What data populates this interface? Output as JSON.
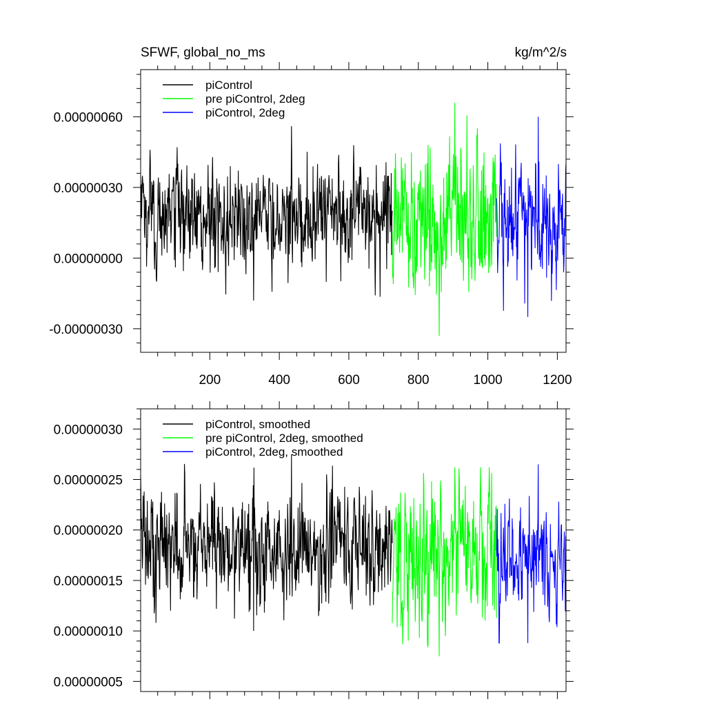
{
  "figure": {
    "left_title": "SFWF, global_no_ms",
    "right_title": "kg/m^2/s"
  },
  "colors": {
    "piControl": "#000000",
    "pre_piControl_2deg": "#00ff00",
    "piControl_2deg": "#0000ff"
  },
  "chart_data": [
    {
      "type": "line",
      "title": "SFWF, global_no_ms",
      "units": "kg/m^2/s",
      "xlim": [
        1,
        1225
      ],
      "ylim": [
        -4e-07,
        8e-07
      ],
      "x_ticks": [
        200,
        400,
        600,
        800,
        1000,
        1200
      ],
      "x_tick_labels": [
        "200",
        "400",
        "600",
        "800",
        "1000",
        "1200"
      ],
      "y_ticks": [
        -3e-07,
        0.0,
        3e-07,
        6e-07
      ],
      "y_tick_labels": [
        "-0.00000030",
        "0.00000000",
        "0.00000030",
        "0.00000060"
      ],
      "legend": "top-left",
      "series": [
        {
          "name": "piControl",
          "color": "#000000",
          "x_range": [
            1,
            725
          ],
          "mean": 1.8e-07,
          "spread": 1.1e-07,
          "peak_max": 5.6e-07,
          "peak_min": -1.8e-07
        },
        {
          "name": "pre piControl, 2deg",
          "color": "#00ff00",
          "x_range": [
            725,
            1025
          ],
          "mean": 1.6e-07,
          "spread": 1.5e-07,
          "peak_max": 6.6e-07,
          "peak_min": -3.3e-07
        },
        {
          "name": "piControl, 2deg",
          "color": "#0000ff",
          "x_range": [
            1025,
            1225
          ],
          "mean": 1.5e-07,
          "spread": 1.3e-07,
          "peak_max": 6e-07,
          "peak_min": -2.5e-07
        }
      ]
    },
    {
      "type": "line",
      "xlim": [
        1,
        1225
      ],
      "ylim": [
        4e-08,
        3.2e-07
      ],
      "x_ticks": [
        200,
        400,
        600,
        800,
        1000,
        1200
      ],
      "y_ticks": [
        5e-08,
        1e-07,
        1.5e-07,
        2e-07,
        2.5e-07,
        3e-07
      ],
      "y_tick_labels": [
        "0.00000005",
        "0.00000010",
        "0.00000015",
        "0.00000020",
        "0.00000025",
        "0.00000030"
      ],
      "legend": "top-left",
      "series": [
        {
          "name": "piControl, smoothed",
          "color": "#000000",
          "x_range": [
            1,
            725
          ],
          "mean": 1.85e-07,
          "spread": 2.8e-08,
          "peak_max": 2.75e-07,
          "peak_min": 1e-07
        },
        {
          "name": "pre piControl, 2deg, smoothed",
          "color": "#00ff00",
          "x_range": [
            725,
            1025
          ],
          "mean": 1.75e-07,
          "spread": 3.5e-08,
          "peak_max": 2.62e-07,
          "peak_min": 7.5e-08
        },
        {
          "name": "piControl, 2deg, smoothed",
          "color": "#0000ff",
          "x_range": [
            1025,
            1225
          ],
          "mean": 1.72e-07,
          "spread": 3e-08,
          "peak_max": 2.65e-07,
          "peak_min": 8.8e-08
        }
      ]
    }
  ]
}
